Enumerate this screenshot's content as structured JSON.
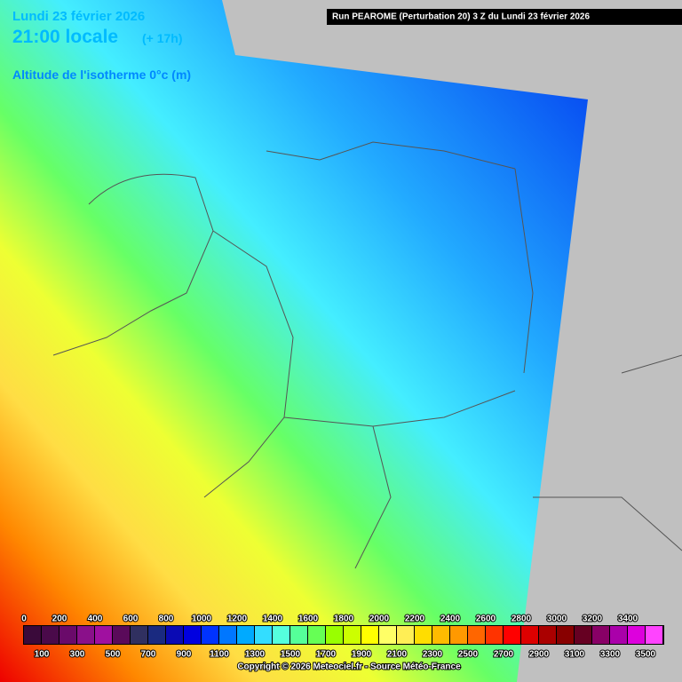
{
  "header": {
    "date": "Lundi 23 février 2026",
    "time": "21:00 locale",
    "lead": "(+ 17h)",
    "parameter": "Altitude de l'isotherme 0°c (m)",
    "run": "Run PEAROME (Perturbation 20) 3 Z du Lundi 23 février 2026"
  },
  "legend": {
    "values": [
      0,
      100,
      200,
      300,
      400,
      500,
      600,
      700,
      800,
      900,
      1000,
      1100,
      1200,
      1300,
      1400,
      1500,
      1600,
      1700,
      1800,
      1900,
      2000,
      2100,
      2200,
      2300,
      2400,
      2500,
      2600,
      2700,
      2800,
      2900,
      3000,
      3100,
      3200,
      3300,
      3400,
      3500
    ],
    "colors": [
      "#3a0a3a",
      "#4a0a4a",
      "#6a0a6a",
      "#8a108a",
      "#a010a0",
      "#5a0a5a",
      "#303060",
      "#1a2a80",
      "#0a0ab4",
      "#0000e0",
      "#0033ff",
      "#0077ff",
      "#00aaff",
      "#33ddff",
      "#55ffdd",
      "#55ff99",
      "#66ff55",
      "#99ff00",
      "#ccff00",
      "#ffff00",
      "#ffff66",
      "#ffee55",
      "#ffdd00",
      "#ffbb00",
      "#ff9900",
      "#ff6600",
      "#ff3300",
      "#ff0000",
      "#dd0000",
      "#aa0000",
      "#880000",
      "#660022",
      "#880066",
      "#aa00aa",
      "#dd00dd",
      "#ff44ff"
    ]
  },
  "footer": {
    "copyright": "Copyright © 2026 Meteociel.fr - Source Météo-France"
  }
}
